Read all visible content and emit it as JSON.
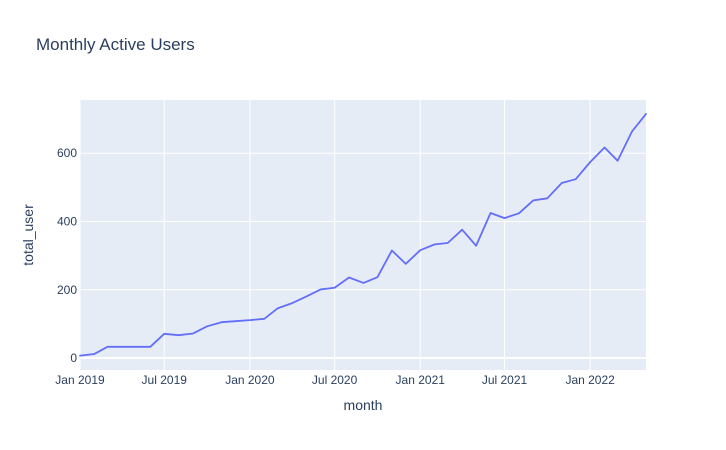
{
  "chart_data": {
    "type": "line",
    "title": "Monthly Active Users",
    "xlabel": "month",
    "ylabel": "total_user",
    "x_range": [
      "2019-01-01",
      "2022-05-01"
    ],
    "ylim": [
      -35,
      756
    ],
    "x_ticks": [
      {
        "date": "2019-01-01",
        "label": "Jan 2019"
      },
      {
        "date": "2019-07-01",
        "label": "Jul 2019"
      },
      {
        "date": "2020-01-01",
        "label": "Jan 2020"
      },
      {
        "date": "2020-07-01",
        "label": "Jul 2020"
      },
      {
        "date": "2021-01-01",
        "label": "Jan 2021"
      },
      {
        "date": "2021-07-01",
        "label": "Jul 2021"
      },
      {
        "date": "2022-01-01",
        "label": "Jan 2022"
      }
    ],
    "y_ticks": [
      0,
      200,
      400,
      600
    ],
    "grid": true,
    "colors": {
      "plot_background": "#e5ecf6",
      "gridline": "#ffffff",
      "line": "#636efa",
      "text": "#2a3f5f"
    },
    "series": [
      {
        "x": [
          "2019-01-01",
          "2019-02-01",
          "2019-03-01",
          "2019-04-01",
          "2019-05-01",
          "2019-06-01",
          "2019-07-01",
          "2019-08-01",
          "2019-09-01",
          "2019-10-01",
          "2019-11-01",
          "2019-12-01",
          "2020-01-01",
          "2020-02-01",
          "2020-03-01",
          "2020-04-01",
          "2020-05-01",
          "2020-06-01",
          "2020-07-01",
          "2020-08-01",
          "2020-09-01",
          "2020-10-01",
          "2020-11-01",
          "2020-12-01",
          "2021-01-01",
          "2021-02-01",
          "2021-03-01",
          "2021-04-01",
          "2021-05-01",
          "2021-06-01",
          "2021-07-01",
          "2021-08-01",
          "2021-09-01",
          "2021-10-01",
          "2021-11-01",
          "2021-12-01",
          "2022-01-01",
          "2022-02-01",
          "2022-03-01",
          "2022-04-01",
          "2022-05-01"
        ],
        "y": [
          7,
          12,
          33,
          33,
          33,
          33,
          71,
          67,
          72,
          93,
          105,
          108,
          111,
          115,
          146,
          161,
          180,
          201,
          206,
          236,
          220,
          237,
          315,
          276,
          316,
          333,
          337,
          376,
          329,
          425,
          410,
          424,
          462,
          468,
          513,
          524,
          574,
          617,
          578,
          664,
          715
        ]
      }
    ]
  }
}
